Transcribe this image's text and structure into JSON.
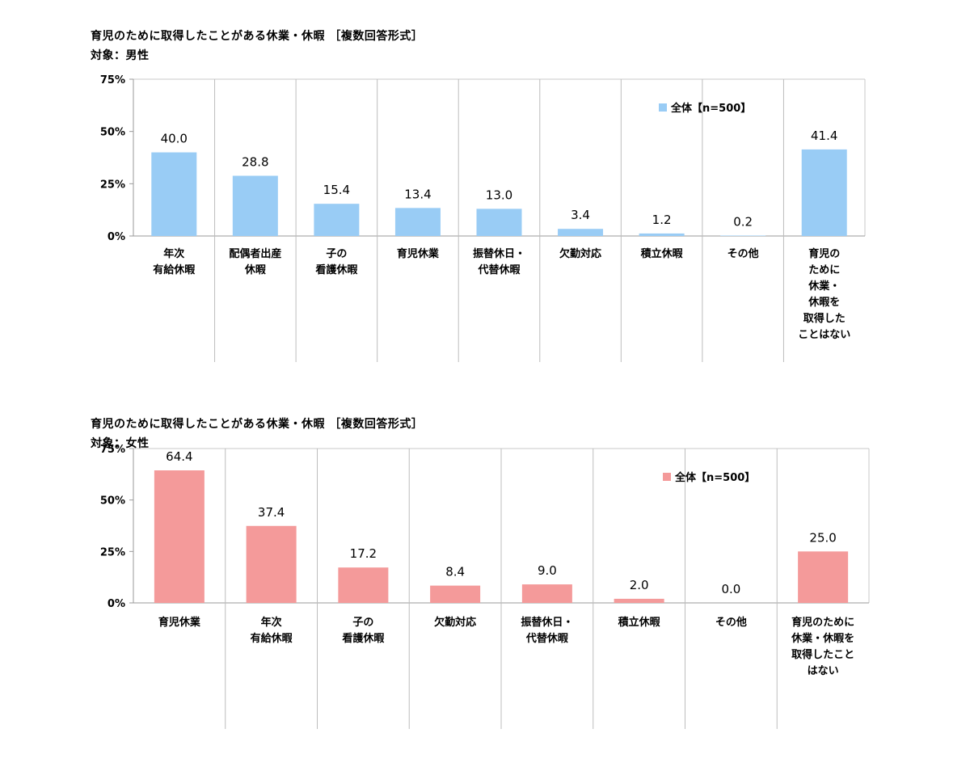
{
  "charts": [
    {
      "id": "male",
      "title": "育児のために取得したことがある休業・休暇 ［複数回答形式］",
      "subtitle": "対象：男性",
      "chart_data": {
        "type": "bar",
        "categories": [
          [
            "年次",
            "有給休暇"
          ],
          [
            "配偶者出産",
            "休暇"
          ],
          [
            "子の",
            "看護休暇"
          ],
          [
            "育児休業"
          ],
          [
            "振替休日・",
            "代替休暇"
          ],
          [
            "欠勤対応"
          ],
          [
            "積立休暇"
          ],
          [
            "その他"
          ],
          [
            "育児の",
            "ために",
            "休業・",
            "休暇を",
            "取得した",
            "ことはない"
          ]
        ],
        "series": [
          {
            "name": "全体【n=500】",
            "values": [
              40.0,
              28.8,
              15.4,
              13.4,
              13.0,
              3.4,
              1.2,
              0.2,
              41.4
            ],
            "color": "#99ccf5"
          }
        ],
        "value_labels": [
          "40.0",
          "28.8",
          "15.4",
          "13.4",
          "13.0",
          "3.4",
          "1.2",
          "0.2",
          "41.4"
        ],
        "yticks": [
          "75%",
          "50%",
          "25%",
          "0%"
        ],
        "ylim": [
          0,
          75
        ],
        "grid": false,
        "legend_position": "top-right"
      }
    },
    {
      "id": "female",
      "title": "育児のために取得したことがある休業・休暇 ［複数回答形式］",
      "subtitle": "対象：女性",
      "chart_data": {
        "type": "bar",
        "categories": [
          [
            "育児休業"
          ],
          [
            "年次",
            "有給休暇"
          ],
          [
            "子の",
            "看護休暇"
          ],
          [
            "欠勤対応"
          ],
          [
            "振替休日・",
            "代替休暇"
          ],
          [
            "積立休暇"
          ],
          [
            "その他"
          ],
          [
            "育児のために",
            "休業・休暇を",
            "取得したこと",
            "はない"
          ]
        ],
        "series": [
          {
            "name": "全体【n=500】",
            "values": [
              64.4,
              37.4,
              17.2,
              8.4,
              9.0,
              2.0,
              0.0,
              25.0
            ],
            "color": "#f49a9a"
          }
        ],
        "value_labels": [
          "64.4",
          "37.4",
          "17.2",
          "8.4",
          "9.0",
          "2.0",
          "0.0",
          "25.0"
        ],
        "yticks": [
          "75%",
          "50%",
          "25%",
          "0%"
        ],
        "ylim": [
          0,
          75
        ],
        "grid": false,
        "legend_position": "top-right"
      }
    }
  ]
}
